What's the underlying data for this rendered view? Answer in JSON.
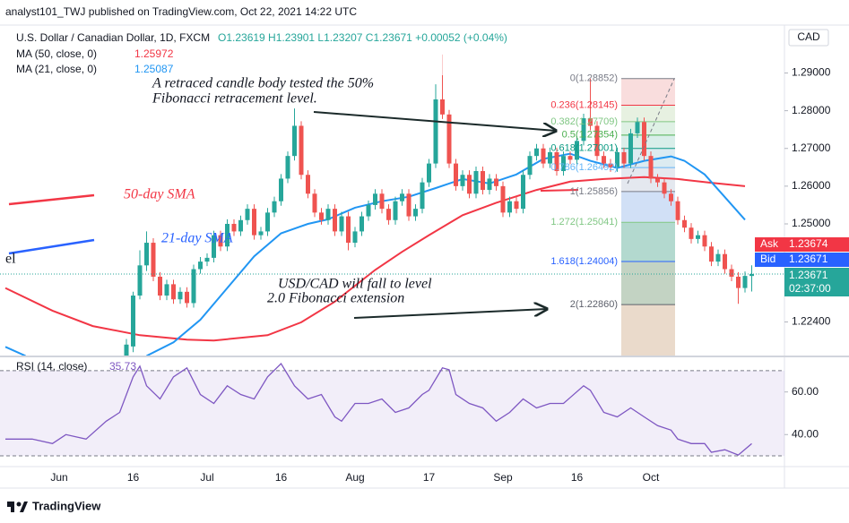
{
  "header": {
    "publisher": "analyst101_TWJ published on TradingView.com, Oct 22, 2021 14:22 UTC",
    "symbol": "U.S. Dollar / Canadian Dollar, 1D, FXCM",
    "ohlc": "O1.23619 H1.23901 L1.23207 C1.23671 +0.00052 (+0.04%)",
    "currency": "CAD"
  },
  "footer": {
    "brand": "TradingView"
  },
  "chart_data": {
    "type": "candlestick",
    "categories": [
      null,
      null,
      null,
      null,
      null,
      null,
      null,
      null,
      "Jun",
      null,
      null,
      null,
      null,
      null,
      null,
      null,
      null,
      null,
      null,
      "16",
      null,
      null,
      null,
      null,
      null,
      null,
      null,
      null,
      null,
      null,
      "Jul",
      null,
      null,
      null,
      null,
      null,
      null,
      null,
      null,
      null,
      null,
      "16",
      null,
      null,
      null,
      null,
      null,
      null,
      null,
      null,
      null,
      null,
      "Aug",
      null,
      null,
      null,
      null,
      null,
      null,
      null,
      null,
      null,
      null,
      "17",
      null,
      null,
      null,
      null,
      null,
      null,
      null,
      null,
      null,
      null,
      "Sep",
      null,
      null,
      null,
      null,
      null,
      null,
      null,
      null,
      null,
      null,
      "16",
      null,
      null,
      null,
      null,
      null,
      null,
      null,
      null,
      null,
      null,
      "Oct",
      null,
      null,
      null,
      null,
      null,
      null,
      null,
      null,
      null,
      null,
      null,
      null,
      null,
      null,
      null
    ],
    "open": [
      null,
      null,
      null,
      null,
      null,
      null,
      null,
      null,
      null,
      null,
      null,
      null,
      null,
      null,
      null,
      null,
      null,
      null,
      1.214,
      1.2175,
      1.231,
      1.239,
      1.245,
      1.236,
      1.231,
      1.234,
      1.23,
      1.232,
      1.229,
      1.238,
      1.24,
      1.241,
      1.247,
      1.244,
      1.25,
      1.248,
      1.251,
      1.254,
      1.247,
      1.248,
      1.253,
      1.256,
      1.262,
      1.268,
      1.276,
      1.263,
      1.258,
      1.253,
      1.251,
      1.254,
      1.248,
      1.252,
      1.245,
      1.248,
      1.252,
      1.255,
      1.258,
      1.254,
      1.251,
      1.256,
      1.258,
      1.252,
      1.254,
      1.261,
      1.266,
      1.283,
      1.279,
      1.266,
      1.26,
      1.263,
      1.258,
      1.264,
      1.259,
      1.262,
      1.26,
      1.253,
      1.256,
      1.254,
      1.263,
      1.268,
      1.27,
      1.266,
      1.269,
      1.264,
      1.268,
      1.267,
      1.272,
      1.278,
      1.276,
      1.268,
      1.266,
      1.265,
      1.269,
      1.266,
      1.274,
      1.277,
      1.268,
      1.262,
      1.261,
      1.258,
      1.256,
      1.251,
      1.249,
      1.246,
      1.247,
      1.244,
      1.24,
      1.242,
      1.238,
      1.236,
      1.233,
      1.23619
    ],
    "high": [
      null,
      null,
      null,
      null,
      null,
      null,
      null,
      null,
      null,
      null,
      null,
      null,
      null,
      null,
      null,
      null,
      null,
      null,
      1.2195,
      1.232,
      1.243,
      1.248,
      1.2462,
      1.2372,
      1.2352,
      1.2352,
      1.2332,
      1.2332,
      1.2392,
      1.2412,
      1.2422,
      1.2482,
      1.2482,
      1.2512,
      1.2512,
      1.2522,
      1.2552,
      1.2552,
      1.2492,
      1.2542,
      1.2572,
      1.2632,
      1.2692,
      1.2806,
      1.2772,
      1.2642,
      1.2592,
      1.2542,
      1.2552,
      1.2552,
      1.2532,
      1.2532,
      1.2492,
      1.2532,
      1.2562,
      1.2592,
      1.2592,
      1.2552,
      1.2572,
      1.2592,
      1.2592,
      1.2552,
      1.2622,
      1.2672,
      1.287,
      1.2949,
      1.2802,
      1.2672,
      1.2642,
      1.2642,
      1.2652,
      1.2652,
      1.2632,
      1.2632,
      1.2612,
      1.2572,
      1.2572,
      1.2642,
      1.2692,
      1.2712,
      1.2712,
      1.2702,
      1.2702,
      1.2692,
      1.2692,
      1.2732,
      1.2792,
      1.2885,
      1.2772,
      1.2692,
      1.2672,
      1.2702,
      1.2702,
      1.2752,
      1.2782,
      1.2782,
      1.2692,
      1.2632,
      1.2622,
      1.2592,
      1.2572,
      1.2522,
      1.2502,
      1.2482,
      1.2482,
      1.2452,
      1.2432,
      1.2432,
      1.2392,
      1.2372,
      1.2374,
      1.23901
    ],
    "low": [
      null,
      null,
      null,
      null,
      null,
      null,
      null,
      null,
      null,
      null,
      null,
      null,
      null,
      null,
      null,
      null,
      null,
      null,
      1.213,
      1.216,
      1.23,
      1.2375,
      1.2348,
      1.2298,
      1.2298,
      1.2288,
      1.2288,
      1.2278,
      1.2278,
      1.2368,
      1.2388,
      1.2398,
      1.2428,
      1.2428,
      1.2468,
      1.2468,
      1.2498,
      1.2458,
      1.2458,
      1.2468,
      1.2518,
      1.2548,
      1.2608,
      1.2668,
      1.2618,
      1.2568,
      1.2518,
      1.2498,
      1.2498,
      1.2468,
      1.2468,
      1.243,
      1.2438,
      1.2468,
      1.2508,
      1.2538,
      1.2528,
      1.2498,
      1.2498,
      1.2548,
      1.2508,
      1.2508,
      1.2528,
      1.2598,
      1.2648,
      1.2778,
      1.2648,
      1.2588,
      1.2588,
      1.2568,
      1.2568,
      1.2578,
      1.2578,
      1.2588,
      1.2518,
      1.2518,
      1.2528,
      1.2528,
      1.2618,
      1.2668,
      1.2648,
      1.2648,
      1.2628,
      1.2628,
      1.2658,
      1.2658,
      1.2708,
      1.2748,
      1.2668,
      1.2648,
      1.2638,
      1.2638,
      1.2648,
      1.2648,
      1.2728,
      1.2668,
      1.2608,
      1.2598,
      1.2568,
      1.2548,
      1.2498,
      1.2478,
      1.2448,
      1.2448,
      1.2428,
      1.2388,
      1.2388,
      1.2368,
      1.2348,
      1.2288,
      1.2318,
      1.23207
    ],
    "close": [
      null,
      null,
      null,
      null,
      null,
      null,
      null,
      null,
      null,
      null,
      null,
      null,
      null,
      null,
      null,
      null,
      null,
      null,
      1.218,
      1.231,
      1.239,
      1.245,
      1.236,
      1.231,
      1.234,
      1.23,
      1.232,
      1.229,
      1.238,
      1.24,
      1.241,
      1.247,
      1.244,
      1.25,
      1.248,
      1.251,
      1.254,
      1.247,
      1.248,
      1.253,
      1.256,
      1.262,
      1.268,
      1.276,
      1.263,
      1.258,
      1.253,
      1.251,
      1.254,
      1.248,
      1.252,
      1.245,
      1.248,
      1.252,
      1.255,
      1.258,
      1.254,
      1.251,
      1.256,
      1.258,
      1.252,
      1.254,
      1.261,
      1.266,
      1.283,
      1.279,
      1.266,
      1.26,
      1.263,
      1.258,
      1.264,
      1.259,
      1.262,
      1.26,
      1.253,
      1.256,
      1.254,
      1.263,
      1.268,
      1.27,
      1.266,
      1.269,
      1.264,
      1.268,
      1.267,
      1.272,
      1.278,
      1.276,
      1.268,
      1.266,
      1.265,
      1.269,
      1.266,
      1.274,
      1.277,
      1.268,
      1.262,
      1.261,
      1.258,
      1.256,
      1.251,
      1.249,
      1.246,
      1.247,
      1.244,
      1.24,
      1.242,
      1.238,
      1.236,
      1.233,
      1.2362,
      1.23671
    ],
    "up_color": "#26a69a",
    "down_color": "#ef5350",
    "ylim": [
      1.2151,
      1.3027
    ],
    "yticks": [
      {
        "value": 1.29,
        "label": "1.29000"
      },
      {
        "value": 1.28,
        "label": "1.28000"
      },
      {
        "value": 1.27,
        "label": "1.27000"
      },
      {
        "value": 1.26,
        "label": "1.26000"
      },
      {
        "value": 1.25,
        "label": "1.25000"
      },
      {
        "value": 1.224,
        "label": "1.22400"
      }
    ],
    "grid": false,
    "series": [
      {
        "name": "MA (50, close, 0)",
        "last": 1.25972,
        "color": "#f23645",
        "x": [
          0,
          7,
          13,
          20,
          27,
          31,
          39,
          44,
          49,
          55,
          59,
          63,
          68,
          73,
          79,
          84,
          89,
          95,
          100,
          105,
          110
        ],
        "values": [
          1.233,
          1.227,
          1.2229,
          1.2205,
          1.2193,
          1.2191,
          1.2205,
          1.2239,
          1.2294,
          1.2378,
          1.2426,
          1.247,
          1.2523,
          1.2556,
          1.259,
          1.2612,
          1.2619,
          1.2624,
          1.2619,
          1.2609,
          1.26
        ]
      },
      {
        "name": "MA (21, close, 0)",
        "last": 1.25087,
        "color": "#2196f3",
        "x": [
          0,
          3,
          4,
          21,
          25,
          29,
          33,
          37,
          41,
          45,
          48,
          52,
          56,
          60,
          64,
          68,
          72,
          76,
          80,
          84,
          87,
          91,
          95,
          99,
          101,
          104,
          107,
          110
        ],
        "values": [
          1.2174,
          1.215,
          null,
          1.215,
          1.2186,
          1.2246,
          1.233,
          1.2414,
          1.2475,
          1.25,
          1.2512,
          1.2543,
          1.256,
          1.2572,
          1.2595,
          1.2619,
          1.2607,
          1.2631,
          1.2672,
          1.2686,
          1.2667,
          1.2648,
          1.2667,
          1.2679,
          1.2667,
          1.2631,
          1.2571,
          1.2511
        ]
      }
    ],
    "fib": [
      {
        "label": "0(1.28852)",
        "value": 1.28852,
        "color": "#787b86",
        "fill": "#f8d7d7"
      },
      {
        "label": "0.236(1.28145)",
        "value": 1.28145,
        "color": "#f23645",
        "fill": "#e3efdc"
      },
      {
        "label": "0.382(1.27709)",
        "value": 1.27709,
        "color": "#81c784",
        "fill": "#d9eee0"
      },
      {
        "label": "0.5(1.27354)",
        "value": 1.27354,
        "color": "#4caf50",
        "fill": "#d2ebe6"
      },
      {
        "label": "0.618(1.27001)",
        "value": 1.27001,
        "color": "#089981",
        "fill": "#d6e7ee"
      },
      {
        "label": "0.786(1.26492)",
        "value": 1.26492,
        "color": "#64b5f6",
        "fill": "#dfe4ec"
      },
      {
        "label": "1(1.25856)",
        "value": 1.25856,
        "color": "#787b86",
        "fill": "#c9dbf5"
      },
      {
        "label": "1.272(1.25041)",
        "value": 1.25041,
        "color": "#81c784",
        "fill": "#a6d2c7"
      },
      {
        "label": "1.618(1.24004)",
        "value": 1.24004,
        "color": "#2962ff",
        "fill": "#b9cbb8"
      },
      {
        "label": "2(1.22860)",
        "value": 1.2286,
        "color": "#5d606b",
        "fill": "#e6d4c2"
      }
    ],
    "annotations": [
      "A retraced candle body tested the 50%",
      "Fibonacci retracement level.",
      "50-day SMA",
      "21-day SMA",
      "el",
      "USD/CAD will fall to level",
      "2.0 Fibonacci extension"
    ],
    "quotes": [
      {
        "name": "Ask",
        "value": 1.23674,
        "color": "#f23645"
      },
      {
        "name": "Bid",
        "value": 1.23671,
        "color": "#2962ff"
      }
    ],
    "last": {
      "value": 1.23671,
      "countdown": "02:37:00",
      "color": "#26a69a"
    },
    "rsi": {
      "name": "RSI (14, close)",
      "last": 35.73,
      "color": "#7e57c2",
      "band": [
        30,
        70
      ],
      "ylim": [
        25.4,
        76.25
      ],
      "yticks": [
        {
          "value": 60,
          "label": "60.00"
        },
        {
          "value": 40,
          "label": "40.00"
        }
      ],
      "x": [
        0,
        4,
        7,
        9,
        12,
        15,
        17,
        19,
        20,
        21,
        23,
        25,
        27,
        29,
        31,
        33,
        35,
        37,
        39,
        41,
        43,
        45,
        47,
        49,
        50,
        52,
        54,
        56,
        58,
        60,
        62,
        63,
        65,
        66,
        67,
        69,
        71,
        73,
        75,
        77,
        79,
        81,
        83,
        86,
        87,
        89,
        91,
        93,
        95,
        97,
        99,
        100,
        102,
        104,
        105,
        107,
        109,
        111
      ],
      "values": [
        37.9,
        37.9,
        35.8,
        40.0,
        37.9,
        46.3,
        50.4,
        67.1,
        72.1,
        62.9,
        56.7,
        67.1,
        71.3,
        58.8,
        54.6,
        62.9,
        58.8,
        56.7,
        67.1,
        73.3,
        62.9,
        56.7,
        58.8,
        48.3,
        46.3,
        54.6,
        54.6,
        56.7,
        50.4,
        52.5,
        58.8,
        60.8,
        71.3,
        70.4,
        58.8,
        54.6,
        52.5,
        46.3,
        50.4,
        56.7,
        52.5,
        54.6,
        54.6,
        62.9,
        60.8,
        50.4,
        48.3,
        52.5,
        48.3,
        44.2,
        42.1,
        37.9,
        35.8,
        35.8,
        31.7,
        32.9,
        30.4,
        35.73
      ]
    }
  }
}
